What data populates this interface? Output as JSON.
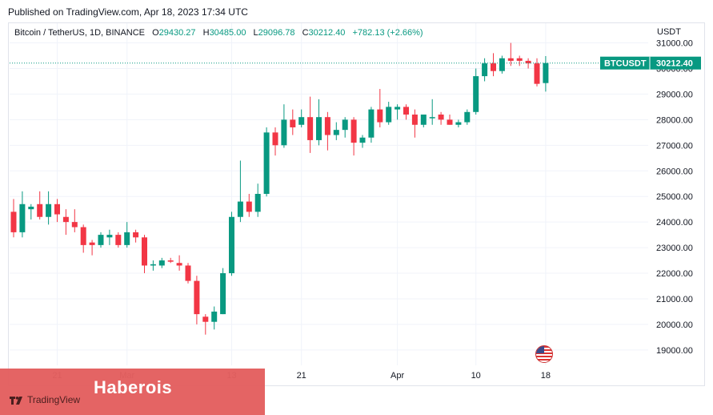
{
  "header": {
    "published": "Published on TradingView.com, Apr 18, 2023 17:34 UTC"
  },
  "legend": {
    "symbol": "Bitcoin / TetherUS, 1D, BINANCE",
    "o_label": "O",
    "o": "29430.27",
    "h_label": "H",
    "h": "30485.00",
    "l_label": "L",
    "l": "29096.78",
    "c_label": "C",
    "c": "30212.40",
    "change": "+782.13 (+2.66%)"
  },
  "currency": "USDT",
  "price_tag": {
    "symbol": "BTCUSDT",
    "price": "30212.40"
  },
  "brand": {
    "title": "Haberois",
    "tv": "TradingView"
  },
  "colors": {
    "up": "#089981",
    "down": "#f23645"
  },
  "chart_data": {
    "type": "candlestick",
    "y_ticks": [
      "31000.00",
      "30000.00",
      "29000.00",
      "28000.00",
      "27000.00",
      "26000.00",
      "25000.00",
      "24000.00",
      "23000.00",
      "22000.00",
      "21000.00",
      "20000.00",
      "19000.00"
    ],
    "ylim": [
      18400,
      31800
    ],
    "x_ticks": [
      {
        "label": "21",
        "index": 5
      },
      {
        "label": "Mar",
        "index": 13
      },
      {
        "label": "13",
        "index": 25
      },
      {
        "label": "21",
        "index": 33
      },
      {
        "label": "Apr",
        "index": 44
      },
      {
        "label": "10",
        "index": 53
      },
      {
        "label": "18",
        "index": 61
      }
    ],
    "last_price": 30212.4,
    "candles": [
      {
        "o": 24400,
        "h": 24900,
        "l": 23400,
        "c": 23600
      },
      {
        "o": 23600,
        "h": 25200,
        "l": 23400,
        "c": 24700
      },
      {
        "o": 24500,
        "h": 24700,
        "l": 24100,
        "c": 24600
      },
      {
        "o": 24700,
        "h": 25200,
        "l": 24100,
        "c": 24200
      },
      {
        "o": 24200,
        "h": 25200,
        "l": 23900,
        "c": 24700
      },
      {
        "o": 24700,
        "h": 24900,
        "l": 24000,
        "c": 24300
      },
      {
        "o": 24200,
        "h": 24500,
        "l": 23500,
        "c": 24000
      },
      {
        "o": 24000,
        "h": 24500,
        "l": 23600,
        "c": 23800
      },
      {
        "o": 23800,
        "h": 23900,
        "l": 22800,
        "c": 23100
      },
      {
        "o": 23200,
        "h": 23300,
        "l": 22700,
        "c": 23100
      },
      {
        "o": 23100,
        "h": 23600,
        "l": 23000,
        "c": 23500
      },
      {
        "o": 23400,
        "h": 23700,
        "l": 23100,
        "c": 23500
      },
      {
        "o": 23500,
        "h": 23600,
        "l": 23000,
        "c": 23100
      },
      {
        "o": 23100,
        "h": 24000,
        "l": 23000,
        "c": 23600
      },
      {
        "o": 23600,
        "h": 23700,
        "l": 23200,
        "c": 23400
      },
      {
        "o": 23400,
        "h": 23500,
        "l": 22000,
        "c": 22300
      },
      {
        "o": 22300,
        "h": 22500,
        "l": 22100,
        "c": 22350
      },
      {
        "o": 22300,
        "h": 22600,
        "l": 22200,
        "c": 22500
      },
      {
        "o": 22500,
        "h": 22600,
        "l": 22400,
        "c": 22450
      },
      {
        "o": 22400,
        "h": 22700,
        "l": 22100,
        "c": 22300
      },
      {
        "o": 22300,
        "h": 22400,
        "l": 21600,
        "c": 21700
      },
      {
        "o": 21700,
        "h": 21900,
        "l": 20000,
        "c": 20400
      },
      {
        "o": 20300,
        "h": 20400,
        "l": 19600,
        "c": 20100
      },
      {
        "o": 20100,
        "h": 20700,
        "l": 19800,
        "c": 20500
      },
      {
        "o": 20400,
        "h": 22200,
        "l": 20400,
        "c": 22000
      },
      {
        "o": 22000,
        "h": 24400,
        "l": 21900,
        "c": 24200
      },
      {
        "o": 24200,
        "h": 26400,
        "l": 24000,
        "c": 24800
      },
      {
        "o": 24800,
        "h": 25100,
        "l": 24200,
        "c": 24400
      },
      {
        "o": 24400,
        "h": 25500,
        "l": 24200,
        "c": 25100
      },
      {
        "o": 25100,
        "h": 27700,
        "l": 25000,
        "c": 27500
      },
      {
        "o": 27500,
        "h": 27700,
        "l": 26600,
        "c": 27000
      },
      {
        "o": 27000,
        "h": 28600,
        "l": 26900,
        "c": 28000
      },
      {
        "o": 28000,
        "h": 28400,
        "l": 27400,
        "c": 27700
      },
      {
        "o": 27800,
        "h": 28400,
        "l": 27700,
        "c": 28100
      },
      {
        "o": 28100,
        "h": 28900,
        "l": 26700,
        "c": 27200
      },
      {
        "o": 27200,
        "h": 28800,
        "l": 27000,
        "c": 28100
      },
      {
        "o": 28100,
        "h": 28300,
        "l": 26800,
        "c": 27400
      },
      {
        "o": 27400,
        "h": 27900,
        "l": 27200,
        "c": 27600
      },
      {
        "o": 27600,
        "h": 28100,
        "l": 27300,
        "c": 28000
      },
      {
        "o": 28000,
        "h": 28100,
        "l": 26600,
        "c": 27100
      },
      {
        "o": 27100,
        "h": 27400,
        "l": 26900,
        "c": 27300
      },
      {
        "o": 27300,
        "h": 28500,
        "l": 27100,
        "c": 28400
      },
      {
        "o": 28400,
        "h": 29200,
        "l": 27700,
        "c": 27900
      },
      {
        "o": 27900,
        "h": 28700,
        "l": 27800,
        "c": 28500
      },
      {
        "o": 28400,
        "h": 28600,
        "l": 28000,
        "c": 28500
      },
      {
        "o": 28500,
        "h": 28600,
        "l": 28000,
        "c": 28200
      },
      {
        "o": 28200,
        "h": 28400,
        "l": 27300,
        "c": 27800
      },
      {
        "o": 27800,
        "h": 28200,
        "l": 27700,
        "c": 28200
      },
      {
        "o": 28100,
        "h": 28800,
        "l": 27800,
        "c": 28100
      },
      {
        "o": 28200,
        "h": 28300,
        "l": 27800,
        "c": 28000
      },
      {
        "o": 28000,
        "h": 28200,
        "l": 27800,
        "c": 27800
      },
      {
        "o": 27800,
        "h": 28000,
        "l": 27700,
        "c": 27900
      },
      {
        "o": 27900,
        "h": 28400,
        "l": 27800,
        "c": 28300
      },
      {
        "o": 28300,
        "h": 30000,
        "l": 28200,
        "c": 29700
      },
      {
        "o": 29700,
        "h": 30400,
        "l": 29500,
        "c": 30200
      },
      {
        "o": 30200,
        "h": 30600,
        "l": 29700,
        "c": 29900
      },
      {
        "o": 29900,
        "h": 30500,
        "l": 29800,
        "c": 30400
      },
      {
        "o": 30400,
        "h": 31000,
        "l": 30100,
        "c": 30300
      },
      {
        "o": 30400,
        "h": 30500,
        "l": 30100,
        "c": 30300
      },
      {
        "o": 30300,
        "h": 30400,
        "l": 30000,
        "c": 30200
      },
      {
        "o": 30200,
        "h": 30400,
        "l": 29300,
        "c": 29400
      },
      {
        "o": 29430.27,
        "h": 30485.0,
        "l": 29096.78,
        "c": 30212.4
      }
    ]
  }
}
